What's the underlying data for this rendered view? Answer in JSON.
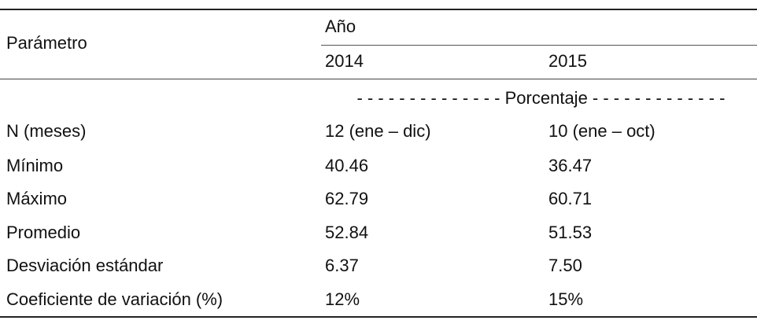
{
  "table": {
    "header": {
      "parameter": "Parámetro",
      "group": "Año",
      "years": [
        "2014",
        "2015"
      ]
    },
    "unit": "- - - - - - - - - - - - - - Porcentaje - - - - - - - - - - - - -",
    "rows": [
      [
        "N (meses)",
        "12 (ene – dic)",
        "10 (ene – oct)"
      ],
      [
        "Mínimo",
        "40.46",
        "36.47"
      ],
      [
        "Máximo",
        "62.79",
        "60.71"
      ],
      [
        "Promedio",
        "52.84",
        "51.53"
      ],
      [
        "Desviación estándar",
        "6.37",
        "7.50"
      ],
      [
        "Coeficiente de variación (%)",
        "12%",
        "15%"
      ]
    ]
  }
}
